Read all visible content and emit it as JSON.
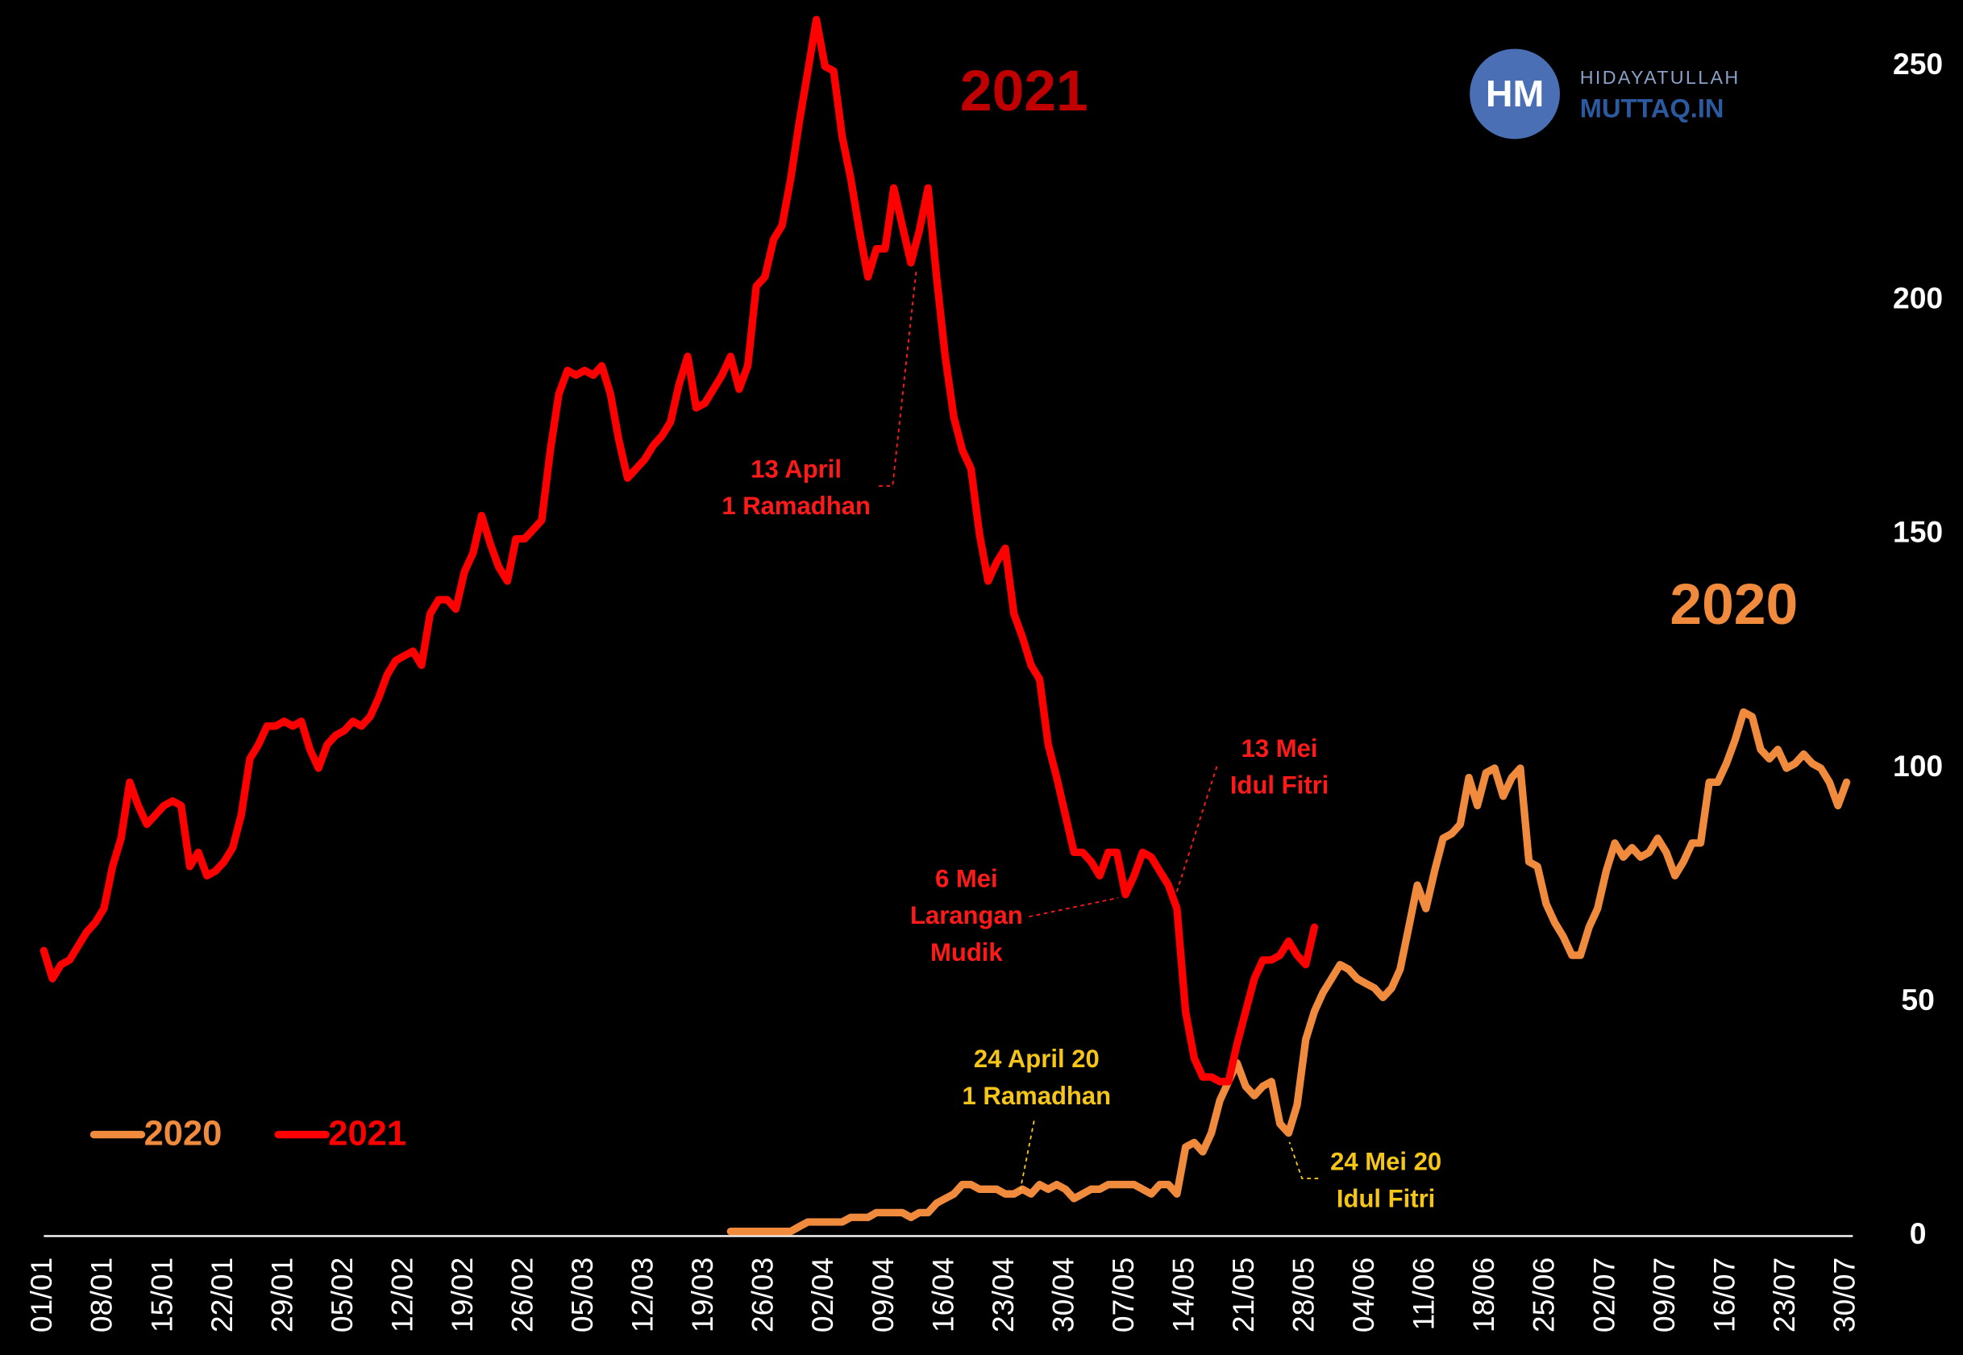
{
  "chart_data": {
    "type": "line",
    "series_labels": [
      "2021",
      "2020"
    ],
    "logo": {
      "initials": "HM",
      "line1": "HIDAYATULLAH",
      "line2": "MUTTAQ.IN"
    },
    "legend": "lower left",
    "ylim": [
      0,
      260
    ],
    "yticks": [
      0,
      50,
      100,
      150,
      200,
      250
    ],
    "categories": [
      "01/01",
      null,
      null,
      null,
      null,
      null,
      null,
      "08/01",
      null,
      null,
      null,
      null,
      null,
      null,
      "15/01",
      null,
      null,
      null,
      null,
      null,
      null,
      "22/01",
      null,
      null,
      null,
      null,
      null,
      null,
      "29/01",
      null,
      null,
      null,
      null,
      null,
      null,
      "05/02",
      null,
      null,
      null,
      null,
      null,
      null,
      "12/02",
      null,
      null,
      null,
      null,
      null,
      null,
      "19/02",
      null,
      null,
      null,
      null,
      null,
      null,
      "26/02",
      null,
      null,
      null,
      null,
      null,
      null,
      "05/03",
      null,
      null,
      null,
      null,
      null,
      null,
      "12/03",
      null,
      null,
      null,
      null,
      null,
      null,
      "19/03",
      null,
      null,
      null,
      null,
      null,
      null,
      "26/03",
      null,
      null,
      null,
      null,
      null,
      null,
      "02/04",
      null,
      null,
      null,
      null,
      null,
      null,
      "09/04",
      null,
      null,
      null,
      null,
      null,
      null,
      "16/04",
      null,
      null,
      null,
      null,
      null,
      null,
      "23/04",
      null,
      null,
      null,
      null,
      null,
      null,
      "30/04",
      null,
      null,
      null,
      null,
      null,
      null,
      "07/05",
      null,
      null,
      null,
      null,
      null,
      null,
      "14/05",
      null,
      null,
      null,
      null,
      null,
      null,
      "21/05",
      null,
      null,
      null,
      null,
      null,
      null,
      "28/05",
      null,
      null,
      null,
      null,
      null,
      null,
      "04/06",
      null,
      null,
      null,
      null,
      null,
      null,
      "11/06",
      null,
      null,
      null,
      null,
      null,
      null,
      "18/06",
      null,
      null,
      null,
      null,
      null,
      null,
      "25/06",
      null,
      null,
      null,
      null,
      null,
      null,
      "02/07",
      null,
      null,
      null,
      null,
      null,
      null,
      "09/07",
      null,
      null,
      null,
      null,
      null,
      null,
      "16/07",
      null,
      null,
      null,
      null,
      null,
      null,
      "23/07",
      null,
      null,
      null,
      null,
      null,
      null,
      "30/07"
    ],
    "series": [
      {
        "name": "2020",
        "color": "#f08a3c",
        "values": [
          null,
          null,
          null,
          null,
          null,
          null,
          null,
          null,
          null,
          null,
          null,
          null,
          null,
          null,
          null,
          null,
          null,
          null,
          null,
          null,
          null,
          null,
          null,
          null,
          null,
          null,
          null,
          null,
          null,
          null,
          null,
          null,
          null,
          null,
          null,
          null,
          null,
          null,
          null,
          null,
          null,
          null,
          null,
          null,
          null,
          null,
          null,
          null,
          null,
          null,
          null,
          null,
          null,
          null,
          null,
          null,
          null,
          null,
          null,
          null,
          null,
          null,
          null,
          null,
          null,
          null,
          null,
          null,
          null,
          null,
          null,
          null,
          null,
          null,
          null,
          null,
          null,
          null,
          null,
          null,
          1,
          1,
          1,
          1,
          1,
          1,
          1,
          1,
          2,
          3,
          3,
          3,
          3,
          3,
          4,
          4,
          4,
          5,
          5,
          5,
          5,
          4,
          5,
          5,
          7,
          8,
          9,
          11,
          11,
          10,
          10,
          10,
          9,
          9,
          10,
          9,
          11,
          10,
          11,
          10,
          8,
          9,
          10,
          10,
          11,
          11,
          11,
          11,
          10,
          9,
          11,
          11,
          9,
          19,
          20,
          18,
          22,
          29,
          33,
          37,
          32,
          30,
          32,
          33,
          24,
          22,
          28,
          42,
          48,
          52,
          55,
          58,
          57,
          55,
          54,
          53,
          51,
          53,
          57,
          66,
          75,
          70,
          78,
          85,
          86,
          88,
          98,
          92,
          99,
          100,
          94,
          98,
          100,
          80,
          79,
          71,
          67,
          64,
          60,
          60,
          66,
          70,
          78,
          84,
          81,
          83,
          81,
          82,
          85,
          82,
          77,
          80,
          84,
          84,
          97,
          97,
          101,
          106,
          112,
          111,
          104,
          102,
          104,
          100,
          101,
          103,
          101,
          100,
          97,
          92,
          97
        ]
      },
      {
        "name": "2021",
        "color": "#ff0000",
        "values": [
          61,
          55,
          58,
          59,
          62,
          65,
          67,
          70,
          79,
          85,
          97,
          92,
          88,
          90,
          92,
          93,
          92,
          79,
          82,
          77,
          78,
          80,
          83,
          90,
          102,
          105,
          109,
          109,
          110,
          109,
          110,
          104,
          100,
          105,
          107,
          108,
          110,
          109,
          111,
          115,
          120,
          123,
          124,
          125,
          122,
          133,
          136,
          136,
          134,
          142,
          146,
          154,
          148,
          143,
          140,
          149,
          149,
          151,
          153,
          168,
          180,
          185,
          184,
          185,
          184,
          186,
          180,
          170,
          162,
          164,
          166,
          169,
          171,
          174,
          182,
          188,
          177,
          178,
          181,
          184,
          188,
          181,
          186,
          203,
          205,
          213,
          216,
          226,
          238,
          249,
          260,
          250,
          249,
          235,
          226,
          215,
          205,
          211,
          211,
          224,
          216,
          208,
          215,
          224,
          205,
          188,
          175,
          168,
          164,
          150,
          140,
          144,
          147,
          133,
          128,
          122,
          119,
          105,
          98,
          90,
          82,
          82,
          80,
          77,
          82,
          82,
          73,
          77,
          82,
          81,
          78,
          75,
          70,
          48,
          38,
          34,
          34,
          33,
          33,
          41,
          48,
          55,
          59,
          59,
          60,
          63,
          60,
          58,
          66,
          null,
          null,
          null,
          null,
          null,
          null,
          null,
          null,
          null,
          null,
          null,
          null,
          null,
          null,
          null,
          null,
          null,
          null,
          null,
          null,
          null,
          null,
          null,
          null,
          null,
          null,
          null,
          null,
          null,
          null,
          null,
          null,
          null,
          null,
          null,
          null,
          null,
          null,
          null,
          null,
          null,
          null,
          null,
          null,
          null,
          null,
          null,
          null,
          null,
          null,
          null,
          null,
          null,
          null,
          null,
          null,
          null,
          null,
          null,
          null,
          null,
          null
        ]
      }
    ],
    "annotations": [
      {
        "lines": [
          "13 April",
          "1 Ramadhan"
        ],
        "color": "#ff1a1a"
      },
      {
        "lines": [
          "6 Mei",
          "Larangan",
          "Mudik"
        ],
        "color": "#ff1a1a"
      },
      {
        "lines": [
          "13 Mei",
          "Idul Fitri"
        ],
        "color": "#ff1a1a"
      },
      {
        "lines": [
          "24 April 20",
          "1 Ramadhan"
        ],
        "color": "#f5c518"
      },
      {
        "lines": [
          "24 Mei 20",
          "Idul Fitri"
        ],
        "color": "#f5c518"
      }
    ]
  }
}
